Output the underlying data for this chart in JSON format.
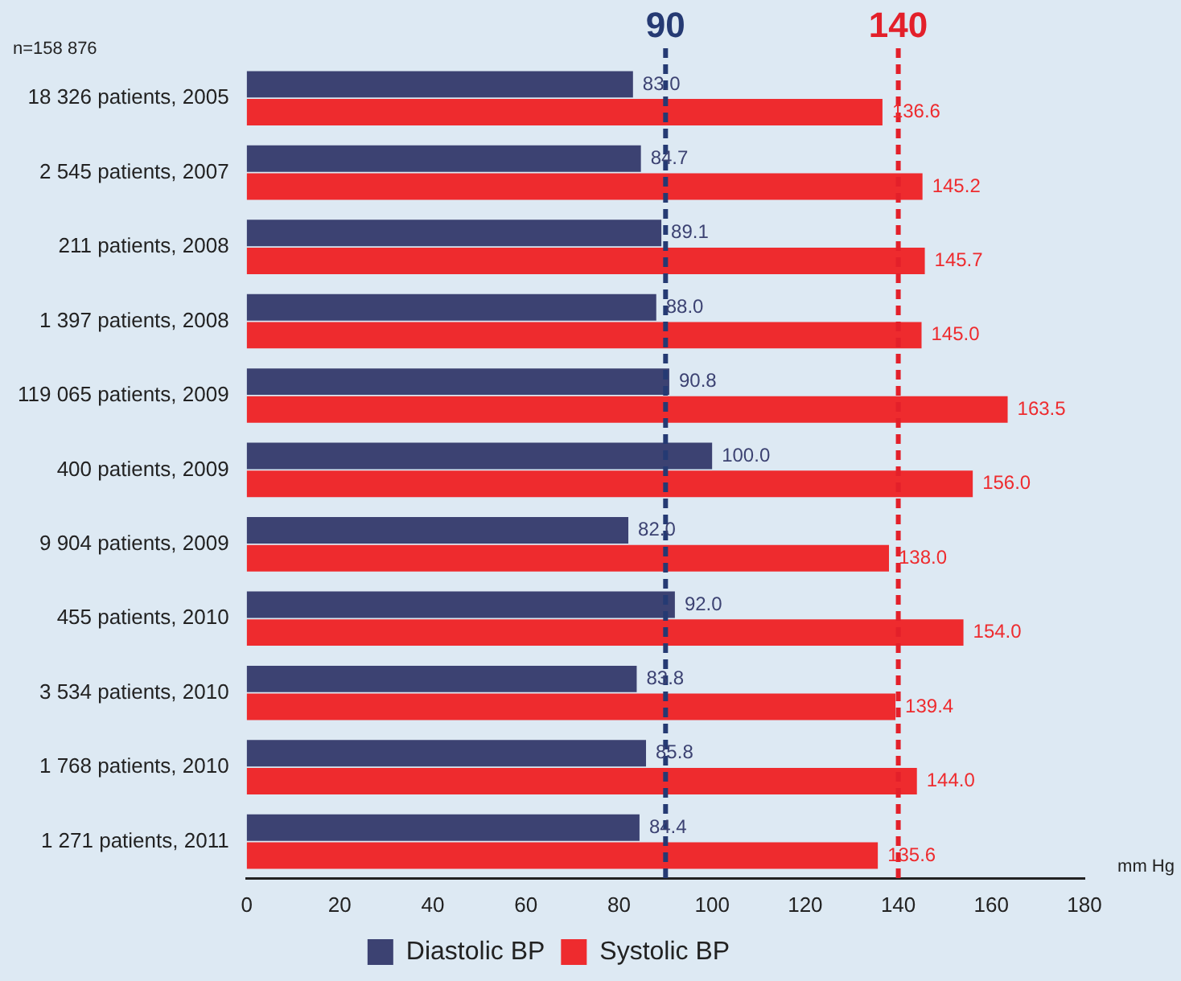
{
  "chart_data": {
    "type": "bar",
    "orientation": "horizontal",
    "categories": [
      "18 326 patients, 2005",
      "2 545 patients, 2007",
      "211 patients, 2008",
      "1 397 patients, 2008",
      "119 065 patients, 2009",
      "400 patients, 2009",
      "9 904 patients, 2009",
      "455 patients, 2010",
      "3 534 patients, 2010",
      "1 768 patients, 2010",
      "1 271 patients, 2011"
    ],
    "series": [
      {
        "name": "Diastolic BP",
        "color": "#3c4272",
        "values": [
          83.0,
          84.7,
          89.1,
          88.0,
          90.8,
          100.0,
          82.0,
          92.0,
          83.8,
          85.8,
          84.4
        ],
        "value_labels": [
          "83.0",
          "84.7",
          "89.1",
          "88.0",
          "90.8",
          "100.0",
          "82.0",
          "92.0",
          "83.8",
          "85.8",
          "84.4"
        ]
      },
      {
        "name": "Systolic BP",
        "color": "#ee2b2e",
        "values": [
          136.6,
          145.2,
          145.7,
          145.0,
          163.5,
          156.0,
          138.0,
          154.0,
          139.4,
          144.0,
          135.6
        ],
        "value_labels": [
          "136.6",
          "145.2",
          "145.7",
          "145.0",
          "163.5",
          "156.0",
          "138.0",
          "154.0",
          "139.4",
          "144.0",
          "135.6"
        ]
      }
    ],
    "xlim": [
      0,
      180
    ],
    "xticks": [
      0,
      20,
      40,
      60,
      80,
      100,
      120,
      140,
      160,
      180
    ],
    "xlabel": "mm Hg",
    "ref_lines": [
      {
        "axis": "x",
        "value": 90,
        "label": "90",
        "color": "#253a73",
        "line_style": "dashed"
      },
      {
        "axis": "x",
        "value": 140,
        "label": "140",
        "color": "#e3202a",
        "line_style": "dashed"
      }
    ],
    "annotations": [
      "n=158 876"
    ],
    "grid": false,
    "legend": "bottom"
  }
}
